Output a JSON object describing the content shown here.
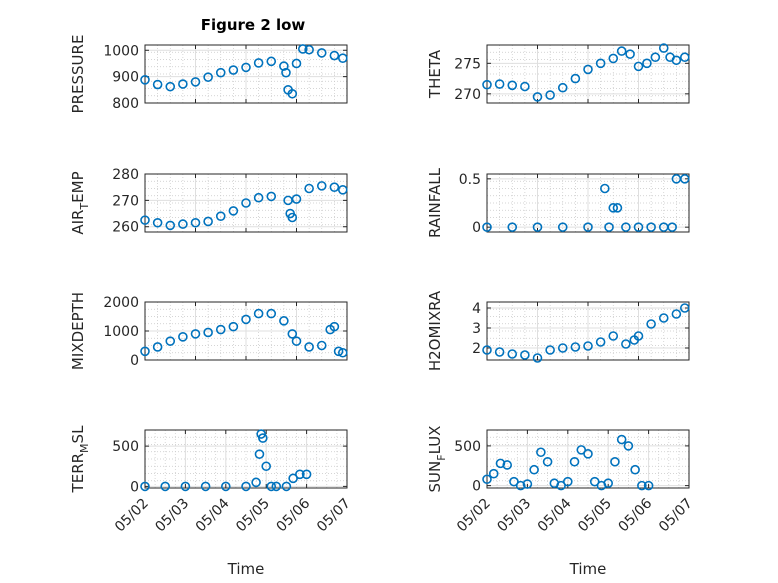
{
  "figure": {
    "title": "Figure 2 low"
  },
  "colors": {
    "marker": "#0072BD",
    "axis": "#262626",
    "grid": "#dfdfdf",
    "grid_minor": "#c8c8c8"
  },
  "chart_data": [
    {
      "type": "scatter",
      "ylabel": "PRESSURE",
      "title": "Figure 2 low",
      "grid": "on (major + minor)",
      "xlim": [
        "05/02",
        "05/06"
      ],
      "ylim": [
        800,
        1020
      ],
      "yticks": [
        "800",
        "900",
        "1000"
      ],
      "x_ticks": [
        "05/02",
        "05/03",
        "05/04",
        "05/05",
        "05/06"
      ],
      "x": [
        "05/02 00:00",
        "05/02 06:00",
        "05/02 12:00",
        "05/02 18:00",
        "05/03 00:00",
        "05/03 06:00",
        "05/03 12:00",
        "05/03 18:00",
        "05/04 00:00",
        "05/04 06:00",
        "05/04 12:00",
        "05/04 18:00",
        "05/04 19:00",
        "05/04 20:00",
        "05/04 22:00",
        "05/05 00:00",
        "05/05 03:00",
        "05/05 06:00",
        "05/05 12:00",
        "05/05 18:00",
        "05/05 22:00"
      ],
      "y": [
        888,
        870,
        862,
        872,
        880,
        898,
        915,
        925,
        935,
        952,
        958,
        940,
        915,
        850,
        835,
        950,
        1005,
        1002,
        990,
        980,
        970
      ]
    },
    {
      "type": "scatter",
      "ylabel": "THETA",
      "grid": "on (major + minor)",
      "ylim": [
        268.5,
        278
      ],
      "yticks": [
        "270",
        "275"
      ],
      "x_ticks": [
        "05/02",
        "05/03",
        "05/04",
        "05/05",
        "05/06"
      ],
      "x": [
        "05/02 00:00",
        "05/02 06:00",
        "05/02 12:00",
        "05/02 18:00",
        "05/03 00:00",
        "05/03 06:00",
        "05/03 12:00",
        "05/03 18:00",
        "05/04 00:00",
        "05/04 06:00",
        "05/04 12:00",
        "05/04 16:00",
        "05/04 20:00",
        "05/05 00:00",
        "05/05 04:00",
        "05/05 08:00",
        "05/05 12:00",
        "05/05 15:00",
        "05/05 18:00",
        "05/05 22:00"
      ],
      "y": [
        271.5,
        271.6,
        271.4,
        271.2,
        269.5,
        269.8,
        271.0,
        272.5,
        274.0,
        275.0,
        275.8,
        277.0,
        276.5,
        274.5,
        275.0,
        276.0,
        277.5,
        276.0,
        275.5,
        276.0
      ]
    },
    {
      "type": "scatter",
      "ylabel": "AIR_TEMP",
      "grid": "on (major + minor)",
      "ylim": [
        258,
        280
      ],
      "yticks": [
        "260",
        "270",
        "280"
      ],
      "x_ticks": [
        "05/02",
        "05/03",
        "05/04",
        "05/05",
        "05/06"
      ],
      "x": [
        "05/02 00:00",
        "05/02 06:00",
        "05/02 12:00",
        "05/02 18:00",
        "05/03 00:00",
        "05/03 06:00",
        "05/03 12:00",
        "05/03 18:00",
        "05/04 00:00",
        "05/04 06:00",
        "05/04 12:00",
        "05/04 20:00",
        "05/04 21:00",
        "05/04 22:00",
        "05/05 00:00",
        "05/05 06:00",
        "05/05 12:00",
        "05/05 18:00",
        "05/05 22:00"
      ],
      "y": [
        262.5,
        261.5,
        260.5,
        261.0,
        261.5,
        262.0,
        264.0,
        266.0,
        269.0,
        271.0,
        271.5,
        270.0,
        265.0,
        263.5,
        270.5,
        274.5,
        275.5,
        275.0,
        274.0
      ]
    },
    {
      "type": "scatter",
      "ylabel": "RAINFALL",
      "grid": "on (major + minor)",
      "ylim": [
        -0.05,
        0.55
      ],
      "yticks": [
        "0",
        "0.5"
      ],
      "x_ticks": [
        "05/02",
        "05/03",
        "05/04",
        "05/05",
        "05/06"
      ],
      "x": [
        "05/02 00:00",
        "05/02 12:00",
        "05/03 00:00",
        "05/03 12:00",
        "05/04 00:00",
        "05/04 08:00",
        "05/04 10:00",
        "05/04 12:00",
        "05/04 14:00",
        "05/04 18:00",
        "05/05 00:00",
        "05/05 06:00",
        "05/05 12:00",
        "05/05 16:00",
        "05/05 18:00",
        "05/05 22:00"
      ],
      "y": [
        0,
        0,
        0,
        0,
        0,
        0.4,
        0,
        0.2,
        0.2,
        0,
        0,
        0,
        0,
        0,
        0.5,
        0.5
      ]
    },
    {
      "type": "scatter",
      "ylabel": "MIXDEPTH",
      "grid": "on (major + minor)",
      "ylim": [
        0,
        2000
      ],
      "yticks": [
        "0",
        "1000",
        "2000"
      ],
      "x_ticks": [
        "05/02",
        "05/03",
        "05/04",
        "05/05",
        "05/06"
      ],
      "x": [
        "05/02 00:00",
        "05/02 06:00",
        "05/02 12:00",
        "05/02 18:00",
        "05/03 00:00",
        "05/03 06:00",
        "05/03 12:00",
        "05/03 18:00",
        "05/04 00:00",
        "05/04 06:00",
        "05/04 12:00",
        "05/04 18:00",
        "05/04 22:00",
        "05/05 00:00",
        "05/05 06:00",
        "05/05 12:00",
        "05/05 16:00",
        "05/05 18:00",
        "05/05 20:00",
        "05/05 22:00"
      ],
      "y": [
        300,
        450,
        650,
        800,
        900,
        950,
        1050,
        1150,
        1400,
        1600,
        1600,
        1350,
        900,
        650,
        450,
        500,
        1050,
        1150,
        300,
        250
      ]
    },
    {
      "type": "scatter",
      "ylabel": "H2OMIXRA",
      "grid": "on (major + minor)",
      "ylim": [
        1.4,
        4.3
      ],
      "yticks": [
        "2",
        "3",
        "4"
      ],
      "x_ticks": [
        "05/02",
        "05/03",
        "05/04",
        "05/05",
        "05/06"
      ],
      "x": [
        "05/02 00:00",
        "05/02 06:00",
        "05/02 12:00",
        "05/02 18:00",
        "05/03 00:00",
        "05/03 06:00",
        "05/03 12:00",
        "05/03 18:00",
        "05/04 00:00",
        "05/04 06:00",
        "05/04 12:00",
        "05/04 18:00",
        "05/04 22:00",
        "05/05 00:00",
        "05/05 06:00",
        "05/05 12:00",
        "05/05 18:00",
        "05/05 22:00"
      ],
      "y": [
        1.9,
        1.8,
        1.7,
        1.65,
        1.5,
        1.9,
        2.0,
        2.05,
        2.1,
        2.3,
        2.6,
        2.2,
        2.4,
        2.6,
        3.2,
        3.5,
        3.7,
        4.0
      ]
    },
    {
      "type": "scatter",
      "ylabel": "TERR_MSL",
      "grid": "on (major + minor)",
      "ylim": [
        -20,
        700
      ],
      "yticks": [
        "0",
        "500"
      ],
      "x_ticks": [
        "05/02",
        "05/03",
        "05/04",
        "05/05",
        "05/06",
        "05/07"
      ],
      "xtick_labels": [
        "05/02",
        "05/03",
        "05/04",
        "05/05",
        "05/06",
        "05/07"
      ],
      "xlabel": "Time",
      "x": [
        "05/02 00:00",
        "05/02 12:00",
        "05/03 00:00",
        "05/03 12:00",
        "05/04 00:00",
        "05/04 12:00",
        "05/04 18:00",
        "05/04 20:00",
        "05/04 21:00",
        "05/04 22:00",
        "05/05 00:00",
        "05/05 03:00",
        "05/05 06:00",
        "05/05 12:00",
        "05/05 16:00",
        "05/05 20:00",
        "05/06 00:00"
      ],
      "y": [
        0,
        0,
        0,
        0,
        0,
        0,
        50,
        400,
        650,
        600,
        250,
        0,
        0,
        0,
        100,
        150,
        150
      ]
    },
    {
      "type": "scatter",
      "ylabel": "SUN_FLUX",
      "grid": "on (major + minor)",
      "ylim": [
        -30,
        700
      ],
      "yticks": [
        "0",
        "500"
      ],
      "x_ticks": [
        "05/02",
        "05/03",
        "05/04",
        "05/05",
        "05/06",
        "05/07"
      ],
      "xtick_labels": [
        "05/02",
        "05/03",
        "05/04",
        "05/05",
        "05/06",
        "05/07"
      ],
      "xlabel": "Time",
      "x": [
        "05/02 00:00",
        "05/02 04:00",
        "05/02 08:00",
        "05/02 12:00",
        "05/02 16:00",
        "05/02 20:00",
        "05/03 00:00",
        "05/03 04:00",
        "05/03 08:00",
        "05/03 12:00",
        "05/03 16:00",
        "05/03 20:00",
        "05/04 00:00",
        "05/04 04:00",
        "05/04 08:00",
        "05/04 12:00",
        "05/04 16:00",
        "05/04 20:00",
        "05/05 00:00",
        "05/05 04:00",
        "05/05 08:00",
        "05/05 12:00",
        "05/05 16:00",
        "05/05 20:00",
        "05/06 00:00"
      ],
      "y": [
        80,
        150,
        280,
        260,
        50,
        0,
        20,
        200,
        420,
        300,
        30,
        0,
        50,
        300,
        450,
        400,
        50,
        0,
        30,
        300,
        580,
        500,
        200,
        0,
        0
      ]
    }
  ]
}
